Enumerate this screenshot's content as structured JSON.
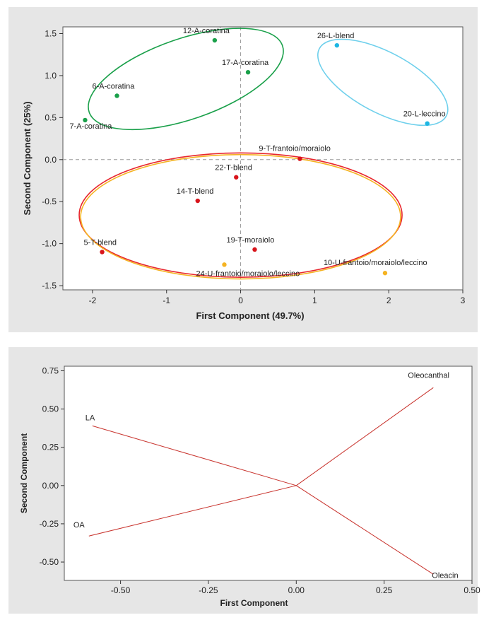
{
  "chart_data": [
    {
      "type": "scatter",
      "title": "",
      "xlabel": "First Component (49.7%)",
      "ylabel": "Second Component (25%)",
      "xlim": [
        -2.4,
        3.0
      ],
      "ylim": [
        -1.55,
        1.58
      ],
      "x_ticks": [
        -2,
        -1,
        0,
        1,
        2,
        3
      ],
      "x_tick_labels": [
        "-2",
        "-1",
        "0",
        "1",
        "2",
        "3"
      ],
      "y_ticks": [
        -1.5,
        -1.0,
        -0.5,
        0.0,
        0.5,
        1.0,
        1.5
      ],
      "y_tick_labels": [
        "-1.5",
        "-1.0",
        "-0.5",
        "0.0",
        "0.5",
        "1.0",
        "1.5"
      ],
      "reference_lines": {
        "x": 0,
        "y": 0,
        "style": "dashed"
      },
      "groups": [
        {
          "name": "A",
          "color": "#1aa04a",
          "ellipse": {
            "cx": -0.74,
            "cy": 0.96,
            "rx": 1.38,
            "ry": 0.48,
            "angle_deg": -19
          }
        },
        {
          "name": "L",
          "color": "#6fd0ec",
          "ellipse": {
            "cx": 1.92,
            "cy": 0.92,
            "rx": 0.97,
            "ry": 0.36,
            "angle_deg": 28
          }
        },
        {
          "name": "T",
          "color": "#e8262d",
          "ellipse": {
            "cx": 0.0,
            "cy": -0.66,
            "rx": 2.18,
            "ry": 0.74,
            "angle_deg": 0
          }
        },
        {
          "name": "U",
          "color": "#f5b322",
          "ellipse": {
            "cx": 0.0,
            "cy": -0.68,
            "rx": 2.16,
            "ry": 0.74,
            "angle_deg": 0
          }
        }
      ],
      "points": [
        {
          "label": "12-A-coratina",
          "x": -0.35,
          "y": 1.42,
          "group": "A",
          "color": "#1aa04a"
        },
        {
          "label": "17-A-coratina",
          "x": 0.1,
          "y": 1.04,
          "group": "A",
          "color": "#1aa04a"
        },
        {
          "label": "6-A-coratina",
          "x": -1.67,
          "y": 0.76,
          "group": "A",
          "color": "#1aa04a"
        },
        {
          "label": "7-A-coratina",
          "x": -2.1,
          "y": 0.47,
          "group": "A",
          "color": "#1aa04a"
        },
        {
          "label": "26-L-blend",
          "x": 1.3,
          "y": 1.36,
          "group": "L",
          "color": "#1db6e3"
        },
        {
          "label": "20-L-leccino",
          "x": 2.52,
          "y": 0.43,
          "group": "L",
          "color": "#1db6e3"
        },
        {
          "label": "9-T-frantoio/moraiolo",
          "x": 0.8,
          "y": 0.01,
          "group": "T",
          "color": "#d8141b"
        },
        {
          "label": "22-T-blend",
          "x": -0.06,
          "y": -0.21,
          "group": "T",
          "color": "#d8141b"
        },
        {
          "label": "14-T-blend",
          "x": -0.58,
          "y": -0.49,
          "group": "T",
          "color": "#d8141b"
        },
        {
          "label": "19-T-moraiolo",
          "x": 0.19,
          "y": -1.07,
          "group": "T",
          "color": "#d8141b"
        },
        {
          "label": "5-T-blend",
          "x": -1.87,
          "y": -1.1,
          "group": "T",
          "color": "#d8141b"
        },
        {
          "label": "24-U-frantoio/moraiolo/leccino",
          "x": -0.22,
          "y": -1.25,
          "group": "U",
          "color": "#f5b322"
        },
        {
          "label": "10-U-frantoio/moraiolo/leccino",
          "x": 1.95,
          "y": -1.35,
          "group": "U",
          "color": "#f5b322"
        }
      ],
      "grid": false,
      "legend": "none"
    },
    {
      "type": "line",
      "title": "",
      "xlabel": "First Component",
      "ylabel": "Second Component",
      "xlim": [
        -0.66,
        0.5
      ],
      "ylim": [
        -0.62,
        0.78
      ],
      "x_ticks": [
        -0.5,
        -0.25,
        0.0,
        0.25,
        0.5
      ],
      "x_tick_labels": [
        "-0.50",
        "-0.25",
        "0.00",
        "0.25",
        "0.50"
      ],
      "y_ticks": [
        -0.5,
        -0.25,
        0.0,
        0.25,
        0.5,
        0.75
      ],
      "y_tick_labels": [
        "-0.50",
        "-0.25",
        "0.00",
        "0.25",
        "0.50",
        "0.75"
      ],
      "line_color": "#c8322c",
      "loadings": [
        {
          "name": "Oleocanthal",
          "x": 0.39,
          "y": 0.64
        },
        {
          "name": "LA",
          "x": -0.58,
          "y": 0.39
        },
        {
          "name": "OA",
          "x": -0.59,
          "y": -0.33
        },
        {
          "name": "Oleacin",
          "x": 0.39,
          "y": -0.58
        }
      ],
      "grid": false,
      "legend": "none"
    }
  ]
}
